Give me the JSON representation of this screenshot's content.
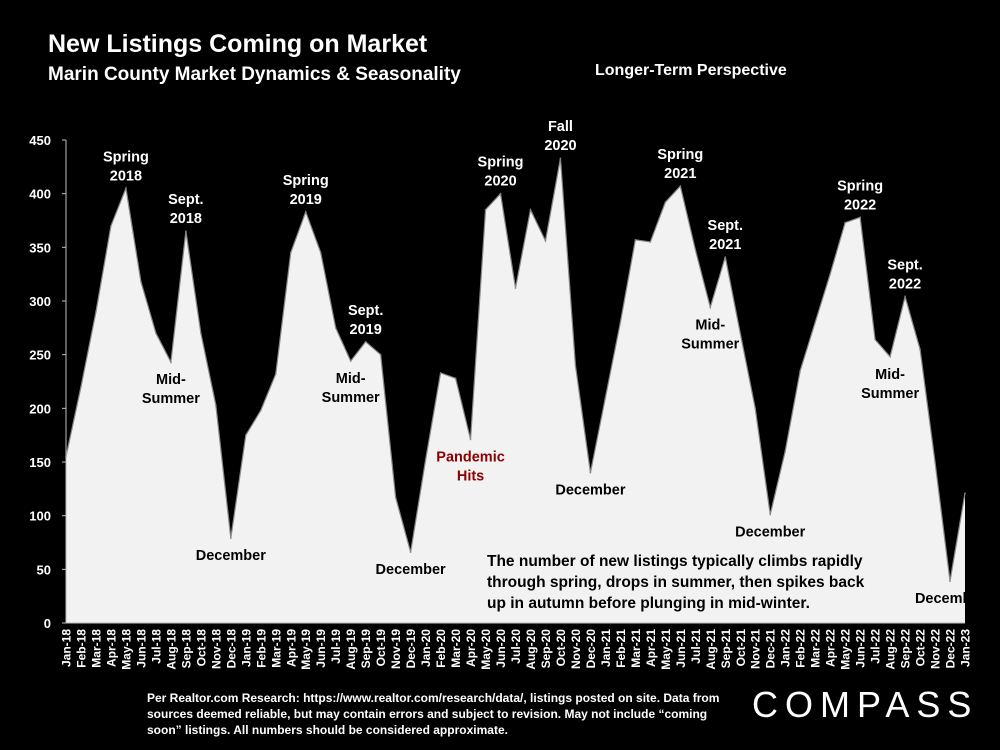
{
  "header": {
    "title": "New Listings Coming on Market",
    "subtitle": "Marin County Market Dynamics & Seasonality",
    "perspective": "Longer-Term Perspective"
  },
  "note": "The number of new listings typically climbs rapidly through spring, drops in summer, then spikes back up in autumn before plunging in mid-winter.",
  "footnote": "Per Realtor.com Research:  https://www.realtor.com/research/data/, listings posted on site. Data from sources deemed reliable, but may contain errors and subject to revision. May not include “coming soon” listings. All numbers should be considered approximate.",
  "logo": "COMPASS",
  "colors": {
    "background": "#000000",
    "area_fill": "#f2f2f2",
    "axis": "#bfbfbf",
    "highlight": "#8b0000"
  },
  "chart_data": {
    "type": "area",
    "title": "New Listings Coming on Market",
    "xlabel": "",
    "ylabel": "",
    "ylim": [
      0,
      450
    ],
    "yticks": [
      0,
      50,
      100,
      150,
      200,
      250,
      300,
      350,
      400,
      450
    ],
    "categories": [
      "Jan-18",
      "Feb-18",
      "Mar-18",
      "Apr-18",
      "May-18",
      "Jun-18",
      "Jul-18",
      "Aug-18",
      "Sep-18",
      "Oct-18",
      "Nov-18",
      "Dec-18",
      "Jan-19",
      "Feb-19",
      "Mar-19",
      "Apr-19",
      "May-19",
      "Jun-19",
      "Jul-19",
      "Aug-19",
      "Sep-19",
      "Oct-19",
      "Nov-19",
      "Dec-19",
      "Jan-20",
      "Feb-20",
      "Mar-20",
      "Apr-20",
      "May-20",
      "Jun-20",
      "Jul-20",
      "Aug-20",
      "Sep-20",
      "Oct-20",
      "Nov-20",
      "Dec-20",
      "Jan-21",
      "Feb-21",
      "Mar-21",
      "Apr-21",
      "May-21",
      "Jun-21",
      "Jul-21",
      "Aug-21",
      "Sep-21",
      "Oct-21",
      "Nov-21",
      "Dec-21",
      "Jan-22",
      "Feb-22",
      "Mar-22",
      "Apr-22",
      "May-22",
      "Jun-22",
      "Jul-22",
      "Aug-22",
      "Sep-22",
      "Oct-22",
      "Nov-22",
      "Dec-22",
      "Jan-23"
    ],
    "series": [
      {
        "name": "New Listings",
        "values": [
          155,
          220,
          290,
          370,
          405,
          318,
          270,
          243,
          365,
          270,
          203,
          79,
          175,
          198,
          232,
          345,
          383,
          345,
          275,
          244,
          262,
          250,
          117,
          66,
          152,
          233,
          228,
          171,
          385,
          400,
          312,
          385,
          356,
          433,
          240,
          140,
          210,
          280,
          357,
          355,
          392,
          407,
          348,
          294,
          341,
          270,
          200,
          101,
          160,
          235,
          280,
          325,
          373,
          378,
          264,
          248,
          304,
          255,
          150,
          39,
          121
        ]
      }
    ],
    "annotations": [
      {
        "lines": [
          "Spring",
          "2018"
        ],
        "at": 4,
        "value": 405,
        "place": "above"
      },
      {
        "lines": [
          "Sept.",
          "2018"
        ],
        "at": 8,
        "value": 365,
        "place": "above"
      },
      {
        "lines": [
          "Mid-",
          "Summer"
        ],
        "at": 7,
        "value": 243,
        "place": "below"
      },
      {
        "lines": [
          "December"
        ],
        "at": 11,
        "value": 79,
        "place": "below"
      },
      {
        "lines": [
          "Spring",
          "2019"
        ],
        "at": 16,
        "value": 383,
        "place": "above"
      },
      {
        "lines": [
          "Sept.",
          "2019"
        ],
        "at": 20,
        "value": 262,
        "place": "above"
      },
      {
        "lines": [
          "Mid-",
          "Summer"
        ],
        "at": 19,
        "value": 244,
        "place": "below"
      },
      {
        "lines": [
          "December"
        ],
        "at": 23,
        "value": 66,
        "place": "below"
      },
      {
        "lines": [
          "Pandemic",
          "Hits"
        ],
        "at": 27,
        "value": 171,
        "place": "below",
        "highlight": true
      },
      {
        "lines": [
          "Spring",
          "2020"
        ],
        "at": 29,
        "value": 400,
        "place": "above"
      },
      {
        "lines": [
          "Fall",
          "2020"
        ],
        "at": 33,
        "value": 433,
        "place": "above"
      },
      {
        "lines": [
          "December"
        ],
        "at": 35,
        "value": 140,
        "place": "below"
      },
      {
        "lines": [
          "Spring",
          "2021"
        ],
        "at": 41,
        "value": 407,
        "place": "above"
      },
      {
        "lines": [
          "Sept.",
          "2021"
        ],
        "at": 44,
        "value": 341,
        "place": "above"
      },
      {
        "lines": [
          "Mid-",
          "Summer"
        ],
        "at": 43,
        "value": 294,
        "place": "below"
      },
      {
        "lines": [
          "December"
        ],
        "at": 47,
        "value": 101,
        "place": "below"
      },
      {
        "lines": [
          "Spring",
          "2022"
        ],
        "at": 53,
        "value": 378,
        "place": "above"
      },
      {
        "lines": [
          "Sept.",
          "2022"
        ],
        "at": 56,
        "value": 304,
        "place": "above"
      },
      {
        "lines": [
          "Mid-",
          "Summer"
        ],
        "at": 55,
        "value": 248,
        "place": "below"
      },
      {
        "lines": [
          "December"
        ],
        "at": 59,
        "value": 39,
        "place": "below"
      }
    ]
  }
}
